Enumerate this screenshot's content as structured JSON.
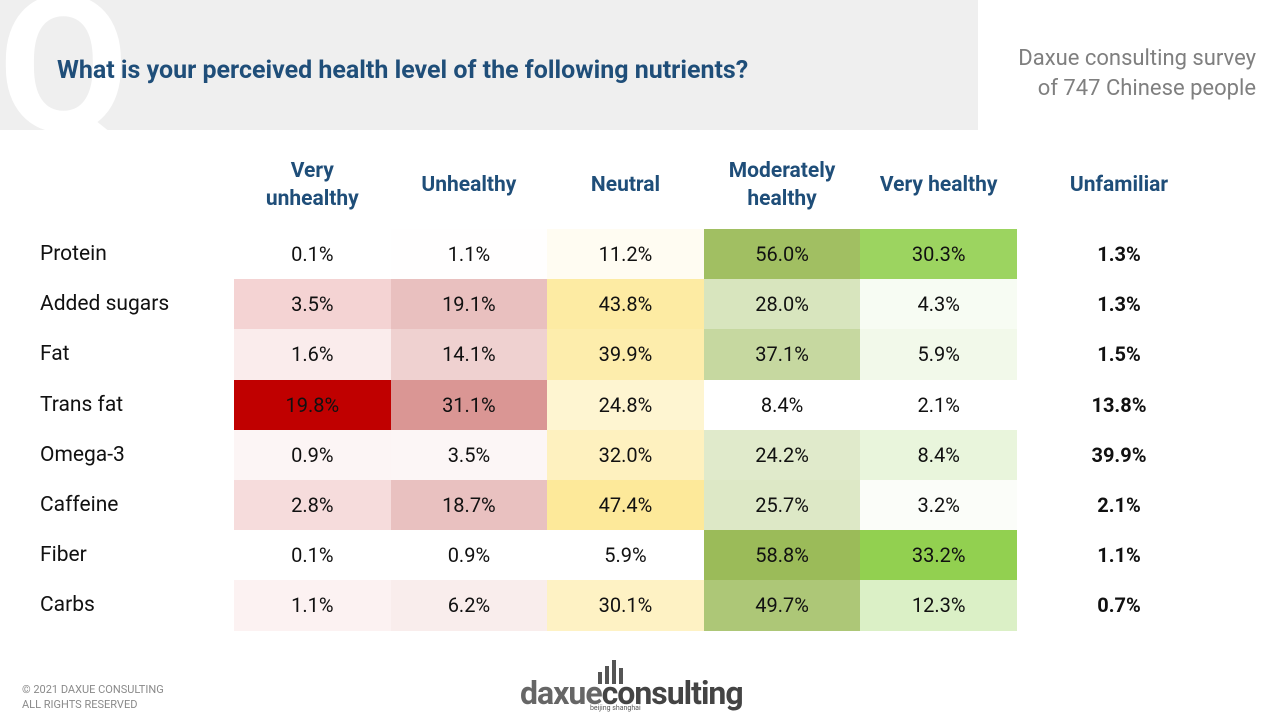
{
  "header": {
    "title": "What is your perceived health level of the following nutrients?",
    "source": [
      "Daxue consulting survey",
      "of 747 Chinese people"
    ]
  },
  "table": {
    "columns": [
      "Very unhealthy",
      "Unhealthy",
      "Neutral",
      "Moderately healthy",
      "Very healthy",
      "Unfamiliar"
    ],
    "rows": [
      {
        "label": "Protein",
        "cells": [
          "0.1%",
          "1.1%",
          "11.2%",
          "56.0%",
          "30.3%",
          "1.3%"
        ]
      },
      {
        "label": "Added sugars",
        "cells": [
          "3.5%",
          "19.1%",
          "43.8%",
          "28.0%",
          "4.3%",
          "1.3%"
        ]
      },
      {
        "label": "Fat",
        "cells": [
          "1.6%",
          "14.1%",
          "39.9%",
          "37.1%",
          "5.9%",
          "1.5%"
        ]
      },
      {
        "label": "Trans fat",
        "cells": [
          "19.8%",
          "31.1%",
          "24.8%",
          "8.4%",
          "2.1%",
          "13.8%"
        ]
      },
      {
        "label": "Omega-3",
        "cells": [
          "0.9%",
          "3.5%",
          "32.0%",
          "24.2%",
          "8.4%",
          "39.9%"
        ]
      },
      {
        "label": "Caffeine",
        "cells": [
          "2.8%",
          "18.7%",
          "47.4%",
          "25.7%",
          "3.2%",
          "2.1%"
        ]
      },
      {
        "label": "Fiber",
        "cells": [
          "0.1%",
          "0.9%",
          "5.9%",
          "58.8%",
          "33.2%",
          "1.1%"
        ]
      },
      {
        "label": "Carbs",
        "cells": [
          "1.1%",
          "6.2%",
          "30.1%",
          "49.7%",
          "12.3%",
          "0.7%"
        ]
      }
    ]
  },
  "footer": {
    "copyright": [
      "© 2021 DAXUE CONSULTING",
      "ALL RIGHTS RESERVED"
    ],
    "logo": {
      "brand_a": "daxue",
      "brand_b": "consulting",
      "tagline": "beijing shanghai"
    }
  }
}
